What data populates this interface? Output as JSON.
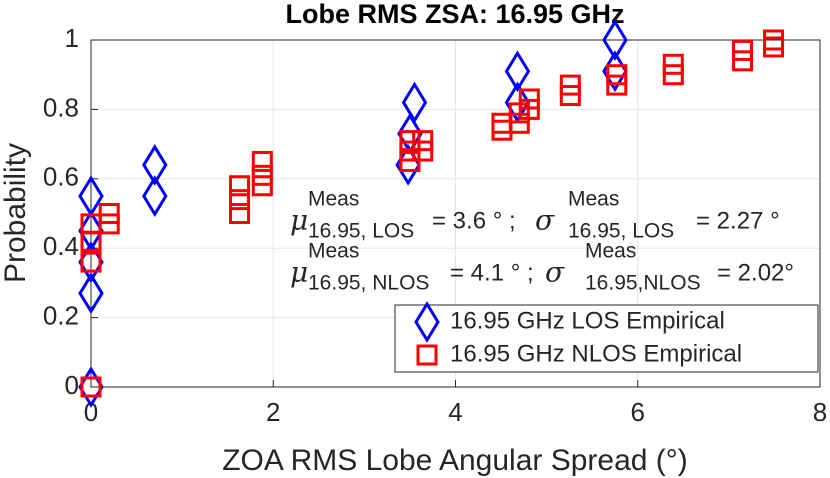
{
  "chart_data": {
    "type": "scatter",
    "title": "Lobe RMS ZSA: 16.95 GHz",
    "x_label": "ZOA RMS Lobe Angular Spread (°)",
    "y_label": "Probability",
    "xlim": [
      0,
      8
    ],
    "xticks": [
      0,
      2,
      4,
      6,
      8
    ],
    "ylim": [
      0,
      1
    ],
    "yticks": [
      0,
      0.2,
      0.4,
      0.6,
      0.8,
      1
    ],
    "grid": true,
    "legend": "lower right",
    "series": [
      {
        "name": "16.95 GHz LOS Empirical",
        "color": "#0000ff",
        "marker": "diamond",
        "x": [
          0,
          0,
          0,
          0,
          0,
          0.7,
          0.7,
          3.48,
          3.5,
          3.55,
          4.68,
          4.68,
          5.75,
          5.75
        ],
        "values": [
          0,
          0.27,
          0.36,
          0.45,
          0.55,
          0.55,
          0.64,
          0.64,
          0.73,
          0.82,
          0.82,
          0.91,
          0.91,
          1.0
        ]
      },
      {
        "name": "16.95 GHz NLOS Empirical",
        "color": "#ff0000",
        "marker": "square",
        "x": [
          0,
          0,
          0,
          0,
          0.2,
          0.2,
          1.63,
          1.63,
          1.63,
          1.88,
          1.88,
          1.88,
          3.5,
          3.5,
          3.5,
          3.64,
          3.64,
          4.51,
          4.51,
          4.7,
          4.7,
          4.81,
          4.81,
          5.26,
          5.26,
          5.77,
          5.77,
          6.39,
          6.39,
          7.15,
          7.15,
          7.49,
          7.49
        ],
        "values": [
          0,
          0.36,
          0.42,
          0.47,
          0.47,
          0.5,
          0.5,
          0.54,
          0.58,
          0.58,
          0.61,
          0.65,
          0.65,
          0.68,
          0.71,
          0.68,
          0.71,
          0.74,
          0.76,
          0.76,
          0.79,
          0.8,
          0.83,
          0.84,
          0.87,
          0.87,
          0.9,
          0.9,
          0.93,
          0.94,
          0.97,
          0.98,
          1.0
        ]
      }
    ],
    "annotations": [
      {
        "mu": "μ",
        "mu_sup": "Meas",
        "mu_sub": "16.95, LOS",
        "mu_text": "= 3.6 ° ;",
        "sigma": "σ",
        "sigma_sup": "Meas",
        "sigma_sub": "16.95, LOS",
        "sigma_text": "= 2.27 °"
      },
      {
        "mu": "μ",
        "mu_sup": "Meas",
        "mu_sub": "16.95, NLOS",
        "mu_text": "= 4.1 ° ;",
        "sigma": "σ",
        "sigma_sup": "Meas",
        "sigma_sub": "16.95,NLOS",
        "sigma_text": "= 2.02°"
      }
    ]
  }
}
